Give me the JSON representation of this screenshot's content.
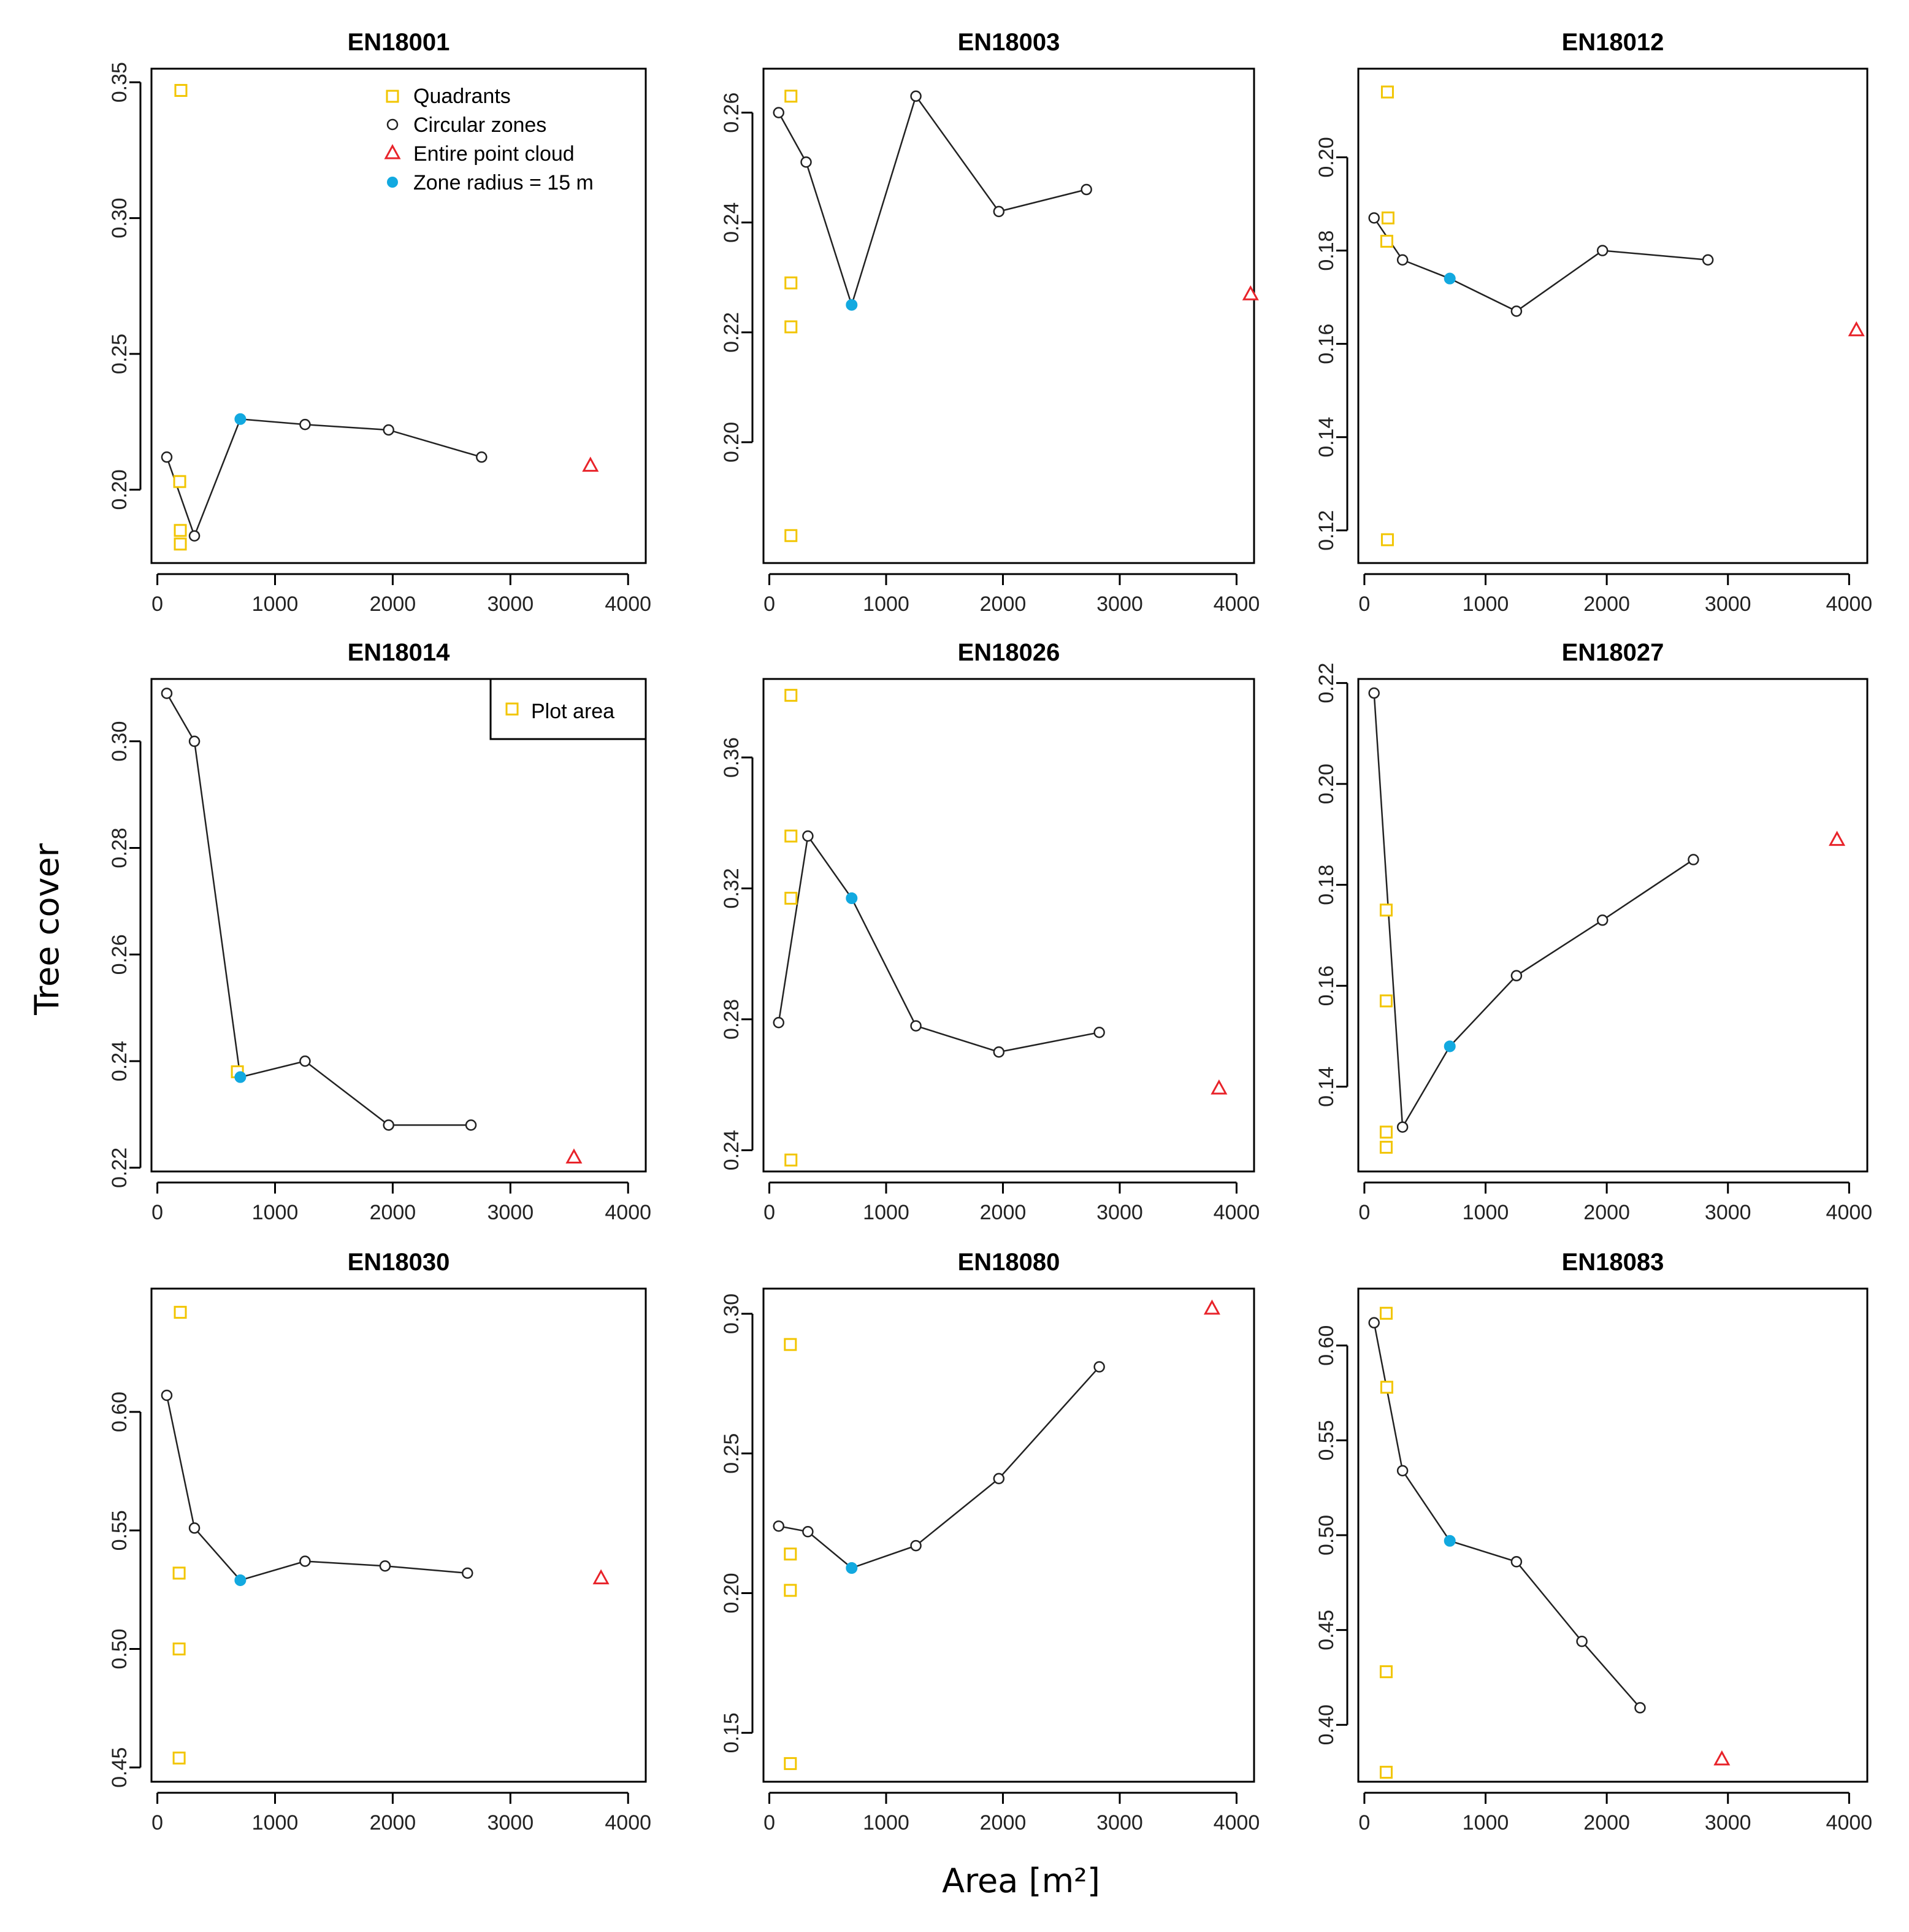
{
  "figure": {
    "ylabel": "Tree cover",
    "xlabel": "Area [m²]",
    "colors": {
      "quadrant": "#F2C500",
      "circle": "#222222",
      "entire": "#E8232A",
      "zone15": "#12A9E0",
      "line": "#222222"
    },
    "legend_main": {
      "position": "top-right of panel EN18001",
      "entries": [
        {
          "label": "Quadrants",
          "symbol": "square-open"
        },
        {
          "label": "Circular zones",
          "symbol": "circle-open"
        },
        {
          "label": "Entire point cloud",
          "symbol": "triangle-open"
        },
        {
          "label": "Zone radius = 15 m",
          "symbol": "circle-filled"
        }
      ]
    },
    "legend_plot_area": {
      "position": "top-right of panel EN18014",
      "entries": [
        {
          "label": "Plot area",
          "symbol": "square-open"
        }
      ]
    }
  },
  "chart_data": [
    {
      "type": "scatter",
      "title": "EN18001",
      "xlim": [
        -50,
        4150
      ],
      "ylim": [
        0.173,
        0.355
      ],
      "xticks": [
        0,
        1000,
        2000,
        3000,
        4000
      ],
      "yticks": [
        0.2,
        0.25,
        0.3,
        0.35
      ],
      "ytick_labels": [
        "0.20",
        "0.25",
        "0.30",
        "0.35"
      ],
      "quadrants": [
        {
          "x": 200,
          "y": 0.347
        },
        {
          "x": 190,
          "y": 0.203
        },
        {
          "x": 195,
          "y": 0.185
        },
        {
          "x": 195,
          "y": 0.18
        }
      ],
      "circular": [
        {
          "x": 80,
          "y": 0.212
        },
        {
          "x": 315,
          "y": 0.183
        },
        {
          "x": 705,
          "y": 0.226
        },
        {
          "x": 1255,
          "y": 0.224
        },
        {
          "x": 1965,
          "y": 0.222
        },
        {
          "x": 2755,
          "y": 0.212
        }
      ],
      "zone15": {
        "x": 705,
        "y": 0.226
      },
      "entire": {
        "x": 3680,
        "y": 0.209
      }
    },
    {
      "type": "scatter",
      "title": "EN18003",
      "xlim": [
        -50,
        4150
      ],
      "ylim": [
        0.178,
        0.268
      ],
      "xticks": [
        0,
        1000,
        2000,
        3000,
        4000
      ],
      "yticks": [
        0.2,
        0.22,
        0.24,
        0.26
      ],
      "ytick_labels": [
        "0.20",
        "0.22",
        "0.24",
        "0.26"
      ],
      "quadrants": [
        {
          "x": 185,
          "y": 0.263
        },
        {
          "x": 185,
          "y": 0.229
        },
        {
          "x": 185,
          "y": 0.221
        },
        {
          "x": 185,
          "y": 0.183
        }
      ],
      "circular": [
        {
          "x": 80,
          "y": 0.26
        },
        {
          "x": 315,
          "y": 0.251
        },
        {
          "x": 705,
          "y": 0.225
        },
        {
          "x": 1255,
          "y": 0.263
        },
        {
          "x": 1965,
          "y": 0.242
        },
        {
          "x": 2715,
          "y": 0.246
        }
      ],
      "zone15": {
        "x": 705,
        "y": 0.225
      },
      "entire": {
        "x": 4120,
        "y": 0.227
      }
    },
    {
      "type": "scatter",
      "title": "EN18012",
      "xlim": [
        -50,
        4150
      ],
      "ylim": [
        0.113,
        0.219
      ],
      "xticks": [
        0,
        1000,
        2000,
        3000,
        4000
      ],
      "yticks": [
        0.12,
        0.14,
        0.16,
        0.18,
        0.2
      ],
      "ytick_labels": [
        "0.12",
        "0.14",
        "0.16",
        "0.18",
        "0.20"
      ],
      "quadrants": [
        {
          "x": 190,
          "y": 0.214
        },
        {
          "x": 195,
          "y": 0.187
        },
        {
          "x": 185,
          "y": 0.182
        },
        {
          "x": 190,
          "y": 0.118
        }
      ],
      "circular": [
        {
          "x": 80,
          "y": 0.187
        },
        {
          "x": 315,
          "y": 0.178
        },
        {
          "x": 705,
          "y": 0.174
        },
        {
          "x": 1255,
          "y": 0.167
        },
        {
          "x": 1965,
          "y": 0.18
        },
        {
          "x": 2835,
          "y": 0.178
        }
      ],
      "zone15": {
        "x": 705,
        "y": 0.174
      },
      "entire": {
        "x": 4060,
        "y": 0.163
      }
    },
    {
      "type": "scatter",
      "title": "EN18014",
      "xlim": [
        -50,
        4150
      ],
      "ylim": [
        0.2193,
        0.3117
      ],
      "xticks": [
        0,
        1000,
        2000,
        3000,
        4000
      ],
      "yticks": [
        0.22,
        0.24,
        0.26,
        0.28,
        0.3
      ],
      "ytick_labels": [
        "0.22",
        "0.24",
        "0.26",
        "0.28",
        "0.30"
      ],
      "quadrants": [
        {
          "x": 680,
          "y": 0.238
        }
      ],
      "circular": [
        {
          "x": 80,
          "y": 0.309
        },
        {
          "x": 315,
          "y": 0.3
        },
        {
          "x": 705,
          "y": 0.237
        },
        {
          "x": 1255,
          "y": 0.24
        },
        {
          "x": 1965,
          "y": 0.228
        },
        {
          "x": 2665,
          "y": 0.228
        }
      ],
      "zone15": {
        "x": 705,
        "y": 0.237
      },
      "entire": {
        "x": 3540,
        "y": 0.222
      }
    },
    {
      "type": "scatter",
      "title": "EN18026",
      "xlim": [
        -50,
        4150
      ],
      "ylim": [
        0.2335,
        0.384
      ],
      "xticks": [
        0,
        1000,
        2000,
        3000,
        4000
      ],
      "yticks": [
        0.24,
        0.28,
        0.32,
        0.36
      ],
      "ytick_labels": [
        "0.24",
        "0.28",
        "0.32",
        "0.36"
      ],
      "quadrants": [
        {
          "x": 185,
          "y": 0.379
        },
        {
          "x": 185,
          "y": 0.336
        },
        {
          "x": 185,
          "y": 0.317
        },
        {
          "x": 185,
          "y": 0.237
        }
      ],
      "circular": [
        {
          "x": 80,
          "y": 0.279
        },
        {
          "x": 330,
          "y": 0.336
        },
        {
          "x": 705,
          "y": 0.317
        },
        {
          "x": 1255,
          "y": 0.278
        },
        {
          "x": 1965,
          "y": 0.27
        },
        {
          "x": 2825,
          "y": 0.276
        }
      ],
      "zone15": {
        "x": 705,
        "y": 0.317
      },
      "entire": {
        "x": 3850,
        "y": 0.259
      }
    },
    {
      "type": "scatter",
      "title": "EN18027",
      "xlim": [
        -50,
        4150
      ],
      "ylim": [
        0.1232,
        0.2208
      ],
      "xticks": [
        0,
        1000,
        2000,
        3000,
        4000
      ],
      "yticks": [
        0.14,
        0.16,
        0.18,
        0.2,
        0.22
      ],
      "ytick_labels": [
        "0.14",
        "0.16",
        "0.18",
        "0.20",
        "0.22"
      ],
      "quadrants": [
        {
          "x": 180,
          "y": 0.175
        },
        {
          "x": 180,
          "y": 0.157
        },
        {
          "x": 180,
          "y": 0.131
        },
        {
          "x": 180,
          "y": 0.128
        }
      ],
      "circular": [
        {
          "x": 80,
          "y": 0.218
        },
        {
          "x": 315,
          "y": 0.132
        },
        {
          "x": 705,
          "y": 0.148
        },
        {
          "x": 1255,
          "y": 0.162
        },
        {
          "x": 1965,
          "y": 0.173
        },
        {
          "x": 2715,
          "y": 0.185
        }
      ],
      "zone15": {
        "x": 705,
        "y": 0.148
      },
      "entire": {
        "x": 3900,
        "y": 0.189
      }
    },
    {
      "type": "scatter",
      "title": "EN18030",
      "xlim": [
        -50,
        4150
      ],
      "ylim": [
        0.444,
        0.652
      ],
      "xticks": [
        0,
        1000,
        2000,
        3000,
        4000
      ],
      "yticks": [
        0.45,
        0.5,
        0.55,
        0.6
      ],
      "ytick_labels": [
        "0.45",
        "0.50",
        "0.55",
        "0.60"
      ],
      "quadrants": [
        {
          "x": 195,
          "y": 0.642
        },
        {
          "x": 185,
          "y": 0.532
        },
        {
          "x": 185,
          "y": 0.5
        },
        {
          "x": 185,
          "y": 0.454
        }
      ],
      "circular": [
        {
          "x": 80,
          "y": 0.607
        },
        {
          "x": 315,
          "y": 0.551
        },
        {
          "x": 705,
          "y": 0.529
        },
        {
          "x": 1255,
          "y": 0.537
        },
        {
          "x": 1935,
          "y": 0.535
        },
        {
          "x": 2635,
          "y": 0.532
        }
      ],
      "zone15": {
        "x": 705,
        "y": 0.529
      },
      "entire": {
        "x": 3770,
        "y": 0.53
      }
    },
    {
      "type": "scatter",
      "title": "EN18080",
      "xlim": [
        -50,
        4150
      ],
      "ylim": [
        0.1325,
        0.309
      ],
      "xticks": [
        0,
        1000,
        2000,
        3000,
        4000
      ],
      "yticks": [
        0.15,
        0.2,
        0.25,
        0.3
      ],
      "ytick_labels": [
        "0.15",
        "0.20",
        "0.25",
        "0.30"
      ],
      "quadrants": [
        {
          "x": 180,
          "y": 0.289
        },
        {
          "x": 180,
          "y": 0.214
        },
        {
          "x": 180,
          "y": 0.201
        },
        {
          "x": 180,
          "y": 0.139
        }
      ],
      "circular": [
        {
          "x": 80,
          "y": 0.224
        },
        {
          "x": 330,
          "y": 0.222
        },
        {
          "x": 705,
          "y": 0.209
        },
        {
          "x": 1255,
          "y": 0.217
        },
        {
          "x": 1965,
          "y": 0.241
        },
        {
          "x": 2825,
          "y": 0.281
        }
      ],
      "zone15": {
        "x": 705,
        "y": 0.209
      },
      "entire": {
        "x": 3790,
        "y": 0.302
      }
    },
    {
      "type": "scatter",
      "title": "EN18083",
      "xlim": [
        -50,
        4150
      ],
      "ylim": [
        0.37,
        0.63
      ],
      "xticks": [
        0,
        1000,
        2000,
        3000,
        4000
      ],
      "yticks": [
        0.4,
        0.45,
        0.5,
        0.55,
        0.6
      ],
      "ytick_labels": [
        "0.40",
        "0.45",
        "0.50",
        "0.55",
        "0.60"
      ],
      "quadrants": [
        {
          "x": 180,
          "y": 0.617
        },
        {
          "x": 185,
          "y": 0.578
        },
        {
          "x": 180,
          "y": 0.428
        },
        {
          "x": 180,
          "y": 0.375
        }
      ],
      "circular": [
        {
          "x": 80,
          "y": 0.612
        },
        {
          "x": 315,
          "y": 0.534
        },
        {
          "x": 705,
          "y": 0.497
        },
        {
          "x": 1255,
          "y": 0.486
        },
        {
          "x": 1795,
          "y": 0.444
        },
        {
          "x": 2275,
          "y": 0.409
        }
      ],
      "zone15": {
        "x": 705,
        "y": 0.497
      },
      "entire": {
        "x": 2950,
        "y": 0.382
      }
    }
  ]
}
